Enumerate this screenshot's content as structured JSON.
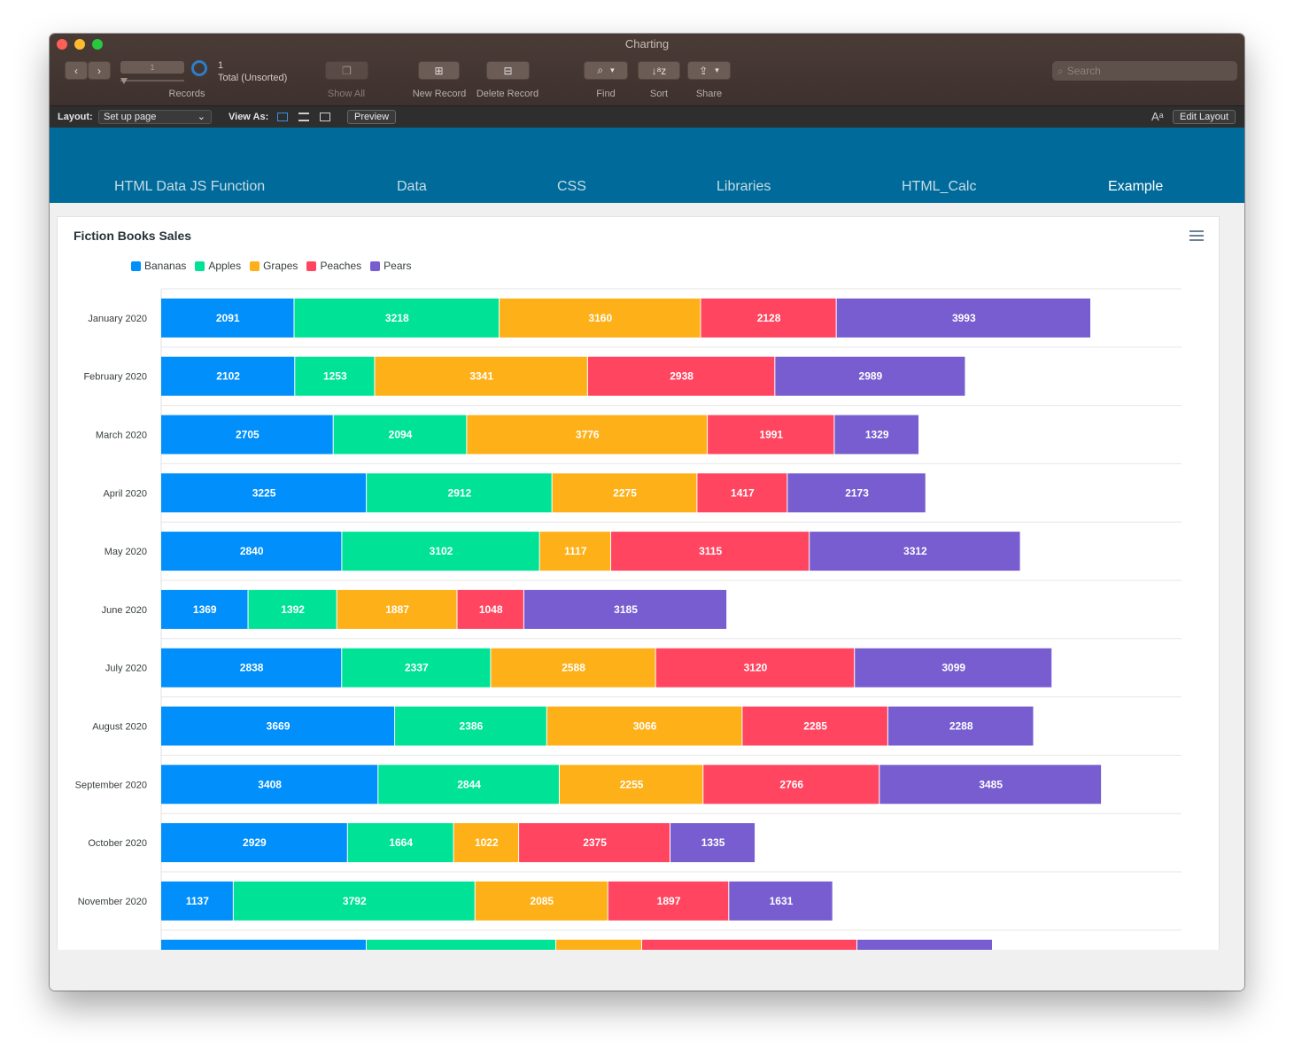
{
  "window": {
    "title": "Charting"
  },
  "toolbar": {
    "record_current": "1",
    "records_label": "Records",
    "found_count": "1",
    "found_status": "Total (Unsorted)",
    "show_all": "Show All",
    "new_record": "New Record",
    "delete_record": "Delete Record",
    "find": "Find",
    "sort": "Sort",
    "share": "Share",
    "search_placeholder": "Search"
  },
  "layoutbar": {
    "layout_label": "Layout:",
    "layout_value": "Set up page",
    "view_as_label": "View As:",
    "preview": "Preview",
    "edit_layout": "Edit Layout"
  },
  "nav": {
    "tabs": [
      {
        "label": "HTML Data JS Function"
      },
      {
        "label": "Data"
      },
      {
        "label": "CSS"
      },
      {
        "label": "Libraries"
      },
      {
        "label": "HTML_Calc"
      },
      {
        "label": "Example",
        "active": true
      }
    ]
  },
  "chart_data": {
    "type": "bar",
    "orientation": "horizontal",
    "stacked": true,
    "title": "Fiction Books Sales",
    "legend_position": "top-left",
    "categories": [
      "January 2020",
      "February 2020",
      "March 2020",
      "April 2020",
      "May 2020",
      "June 2020",
      "July 2020",
      "August 2020",
      "September 2020",
      "October 2020",
      "November 2020"
    ],
    "series": [
      {
        "name": "Bananas",
        "color": "#008ffb",
        "values": [
          2091,
          2102,
          2705,
          3225,
          2840,
          1369,
          2838,
          3669,
          3408,
          2929,
          1137
        ]
      },
      {
        "name": "Apples",
        "color": "#00e396",
        "values": [
          3218,
          1253,
          2094,
          2912,
          3102,
          1392,
          2337,
          2386,
          2844,
          1664,
          3792
        ]
      },
      {
        "name": "Grapes",
        "color": "#feb019",
        "values": [
          3160,
          3341,
          3776,
          2275,
          1117,
          1887,
          2588,
          3066,
          2255,
          1022,
          2085
        ]
      },
      {
        "name": "Peaches",
        "color": "#ff4560",
        "values": [
          2128,
          2938,
          1991,
          1417,
          3115,
          1048,
          3120,
          2285,
          2766,
          2375,
          1897
        ]
      },
      {
        "name": "Pears",
        "color": "#775dd0",
        "values": [
          3993,
          2989,
          1329,
          2173,
          3312,
          3185,
          3099,
          2288,
          3485,
          1335,
          1631
        ]
      }
    ]
  }
}
